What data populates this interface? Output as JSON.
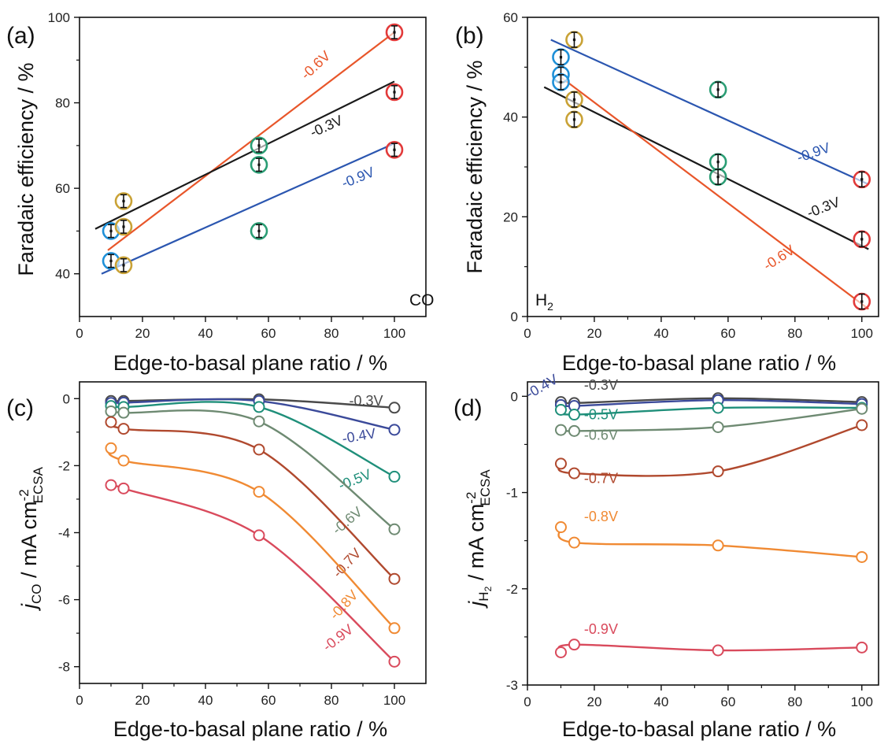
{
  "figure": {
    "panels": [
      {
        "letter": "(a)",
        "tag": "CO",
        "tag_sub": "",
        "xlabel": "Edge-to-basal plane ratio / %",
        "ylabel": "Faradaic efficiency / %"
      },
      {
        "letter": "(b)",
        "tag": "H",
        "tag_sub": "2",
        "xlabel": "Edge-to-basal plane ratio / %",
        "ylabel": "Faradaic efficiency / %"
      },
      {
        "letter": "(c)",
        "tag": "",
        "tag_sub": "",
        "xlabel": "Edge-to-basal plane ratio / %",
        "ylabel_main": "j",
        "ylabel_sub": "CO",
        "ylabel_rest": " / mA cm",
        "ylabel_sup": "-2",
        "ylabel_sub2": "ECSA"
      },
      {
        "letter": "(d)",
        "tag": "",
        "tag_sub": "",
        "xlabel": "Edge-to-basal plane ratio / %",
        "ylabel_main": "j",
        "ylabel_sub": "H",
        "ylabel_subsub": "2",
        "ylabel_rest": " / mA cm",
        "ylabel_sup": "-2",
        "ylabel_sub2": "ECSA"
      }
    ]
  },
  "colors": {
    "black": "#1a1a1a",
    "orange_red": "#e8562a",
    "blue": "#2b56b0",
    "circle_blue": "#1e90d8",
    "circle_gold": "#c9a236",
    "circle_green": "#2a9d74",
    "circle_red": "#e23a3a",
    "v03": "#4a4a4a",
    "v04": "#3b4a9a",
    "v05": "#1f8f7a",
    "v06": "#6e8a72",
    "v07": "#b0492e",
    "v08": "#f08a33",
    "v09": "#d94a5c"
  },
  "chart_data": [
    {
      "type": "scatter",
      "panel": "(a)",
      "title": "",
      "xlabel": "Edge-to-basal plane ratio / %",
      "ylabel": "Faradaic efficiency / %",
      "xlim": [
        0,
        110
      ],
      "ylim": [
        30,
        100
      ],
      "xticks": [
        0,
        20,
        40,
        60,
        80,
        100
      ],
      "yticks": [
        40,
        60,
        80,
        100
      ],
      "points": [
        {
          "x": 10,
          "y": 50,
          "err": 1.5,
          "ring": "circle_blue"
        },
        {
          "x": 10,
          "y": 43,
          "err": 1.5,
          "ring": "circle_blue"
        },
        {
          "x": 14,
          "y": 57,
          "err": 1.5,
          "ring": "circle_gold"
        },
        {
          "x": 14,
          "y": 51,
          "err": 1.5,
          "ring": "circle_gold"
        },
        {
          "x": 14,
          "y": 42,
          "err": 1.5,
          "ring": "circle_gold"
        },
        {
          "x": 57,
          "y": 70,
          "err": 1.5,
          "ring": "circle_green"
        },
        {
          "x": 57,
          "y": 65.5,
          "err": 1.5,
          "ring": "circle_green"
        },
        {
          "x": 57,
          "y": 50,
          "err": 1.5,
          "ring": "circle_green"
        },
        {
          "x": 100,
          "y": 96.5,
          "err": 1.5,
          "ring": "circle_red"
        },
        {
          "x": 100,
          "y": 82.5,
          "err": 1.5,
          "ring": "circle_red"
        },
        {
          "x": 100,
          "y": 69,
          "err": 1.5,
          "ring": "circle_red"
        }
      ],
      "fits": [
        {
          "name": "-0.6V",
          "color": "orange_red",
          "x": [
            9,
            100
          ],
          "y": [
            45.5,
            96.5
          ],
          "label_x": 76,
          "label_y": 88,
          "label_angle": -43
        },
        {
          "name": "-0.3V",
          "color": "black",
          "x": [
            5,
            100
          ],
          "y": [
            50.5,
            85
          ],
          "label_x": 79,
          "label_y": 73.5,
          "label_angle": -24
        },
        {
          "name": "-0.9V",
          "color": "blue",
          "x": [
            7,
            100
          ],
          "y": [
            40,
            70.5
          ],
          "label_x": 89,
          "label_y": 61.5,
          "label_angle": -22
        }
      ]
    },
    {
      "type": "scatter",
      "panel": "(b)",
      "title": "",
      "xlabel": "Edge-to-basal plane ratio / %",
      "ylabel": "Faradaic efficiency / %",
      "xlim": [
        0,
        105
      ],
      "ylim": [
        0,
        60
      ],
      "xticks": [
        0,
        20,
        40,
        60,
        80,
        100
      ],
      "yticks": [
        0,
        20,
        40,
        60
      ],
      "points": [
        {
          "x": 10,
          "y": 52,
          "err": 1.5,
          "ring": "circle_blue"
        },
        {
          "x": 10,
          "y": 48.5,
          "err": 1.5,
          "ring": "circle_blue"
        },
        {
          "x": 10,
          "y": 47,
          "err": 1.5,
          "ring": "circle_blue"
        },
        {
          "x": 14,
          "y": 55.5,
          "err": 1.5,
          "ring": "circle_gold"
        },
        {
          "x": 14,
          "y": 43.5,
          "err": 1.5,
          "ring": "circle_gold"
        },
        {
          "x": 14,
          "y": 39.5,
          "err": 1.5,
          "ring": "circle_gold"
        },
        {
          "x": 57,
          "y": 45.5,
          "err": 1.5,
          "ring": "circle_green"
        },
        {
          "x": 57,
          "y": 31,
          "err": 1.5,
          "ring": "circle_green"
        },
        {
          "x": 57,
          "y": 28,
          "err": 1.5,
          "ring": "circle_green"
        },
        {
          "x": 100,
          "y": 27.5,
          "err": 1.5,
          "ring": "circle_red"
        },
        {
          "x": 100,
          "y": 15.5,
          "err": 1.5,
          "ring": "circle_red"
        },
        {
          "x": 100,
          "y": 3,
          "err": 1.5,
          "ring": "circle_red"
        }
      ],
      "fits": [
        {
          "name": "-0.9V",
          "color": "blue",
          "x": [
            7,
            102
          ],
          "y": [
            55.5,
            26.5
          ],
          "label_x": 86,
          "label_y": 32,
          "label_angle": -19
        },
        {
          "name": "-0.3V",
          "color": "black",
          "x": [
            5,
            102
          ],
          "y": [
            46,
            13.5
          ],
          "label_x": 89,
          "label_y": 21,
          "label_angle": -21
        },
        {
          "name": "-0.6V",
          "color": "orange_red",
          "x": [
            9,
            102
          ],
          "y": [
            48.5,
            1.5
          ],
          "label_x": 76,
          "label_y": 11,
          "label_angle": -33
        }
      ]
    },
    {
      "type": "line",
      "panel": "(c)",
      "title": "",
      "xlabel": "Edge-to-basal plane ratio / %",
      "ylabel": "j_CO / mA cm^-2_ECSA",
      "xlim": [
        0,
        110
      ],
      "ylim": [
        -8.5,
        0.5
      ],
      "xticks": [
        0,
        20,
        40,
        60,
        80,
        100
      ],
      "yticks": [
        0,
        -2,
        -4,
        -6,
        -8
      ],
      "x": [
        10,
        14,
        57,
        100
      ],
      "series": [
        {
          "name": "-0.3V",
          "color": "v03",
          "values": [
            -0.07,
            -0.07,
            -0.02,
            -0.27
          ],
          "label_x": 91,
          "label_y": -0.2,
          "label_angle": 0
        },
        {
          "name": "-0.4V",
          "color": "v04",
          "values": [
            -0.13,
            -0.12,
            -0.07,
            -0.93
          ],
          "label_x": 89,
          "label_y": -1.25,
          "label_angle": -10
        },
        {
          "name": "-0.5V",
          "color": "v05",
          "values": [
            -0.22,
            -0.25,
            -0.25,
            -2.33
          ],
          "label_x": 88,
          "label_y": -2.55,
          "label_angle": -22
        },
        {
          "name": "-0.6V",
          "color": "v06",
          "values": [
            -0.38,
            -0.42,
            -0.68,
            -3.9
          ],
          "label_x": 86,
          "label_y": -3.75,
          "label_angle": -40
        },
        {
          "name": "-0.7V",
          "color": "v07",
          "values": [
            -0.7,
            -0.9,
            -1.52,
            -5.38
          ],
          "label_x": 86,
          "label_y": -5.0,
          "label_angle": -47
        },
        {
          "name": "-0.8V",
          "color": "v08",
          "values": [
            -1.48,
            -1.85,
            -2.78,
            -6.85
          ],
          "label_x": 85,
          "label_y": -6.25,
          "label_angle": -47
        },
        {
          "name": "-0.9V",
          "color": "v09",
          "values": [
            -2.58,
            -2.68,
            -4.08,
            -7.85
          ],
          "label_x": 83,
          "label_y": -7.25,
          "label_angle": -38
        }
      ]
    },
    {
      "type": "line",
      "panel": "(d)",
      "title": "",
      "xlabel": "Edge-to-basal plane ratio / %",
      "ylabel": "j_H2 / mA cm^-2_ECSA",
      "xlim": [
        0,
        105
      ],
      "ylim": [
        -3,
        0.15
      ],
      "xticks": [
        0,
        20,
        40,
        60,
        80,
        100
      ],
      "yticks": [
        0,
        -1,
        -2,
        -3
      ],
      "x": [
        10,
        14,
        57,
        100
      ],
      "series": [
        {
          "name": "-0.3V",
          "color": "v03",
          "values": [
            -0.06,
            -0.07,
            -0.02,
            -0.06
          ],
          "label_x": 22,
          "label_y": 0.07,
          "label_angle": 0
        },
        {
          "name": "-0.4V",
          "color": "v04",
          "values": [
            -0.09,
            -0.1,
            -0.04,
            -0.08
          ],
          "label_x": 5,
          "label_y": 0.06,
          "label_angle": -30
        },
        {
          "name": "-0.5V",
          "color": "v05",
          "values": [
            -0.14,
            -0.19,
            -0.12,
            -0.12
          ],
          "label_x": 22,
          "label_y": -0.24,
          "label_angle": 0
        },
        {
          "name": "-0.6V",
          "color": "v06",
          "values": [
            -0.35,
            -0.36,
            -0.32,
            -0.13
          ],
          "label_x": 22,
          "label_y": -0.45,
          "label_angle": 0
        },
        {
          "name": "-0.7V",
          "color": "v07",
          "values": [
            -0.7,
            -0.8,
            -0.78,
            -0.3
          ],
          "label_x": 22,
          "label_y": -0.9,
          "label_angle": 0
        },
        {
          "name": "-0.8V",
          "color": "v08",
          "values": [
            -1.36,
            -1.52,
            -1.55,
            -1.67
          ],
          "label_x": 22,
          "label_y": -1.3,
          "label_angle": 0
        },
        {
          "name": "-0.9V",
          "color": "v09",
          "values": [
            -2.66,
            -2.58,
            -2.64,
            -2.61
          ],
          "label_x": 22,
          "label_y": -2.47,
          "label_angle": 0
        }
      ]
    }
  ]
}
